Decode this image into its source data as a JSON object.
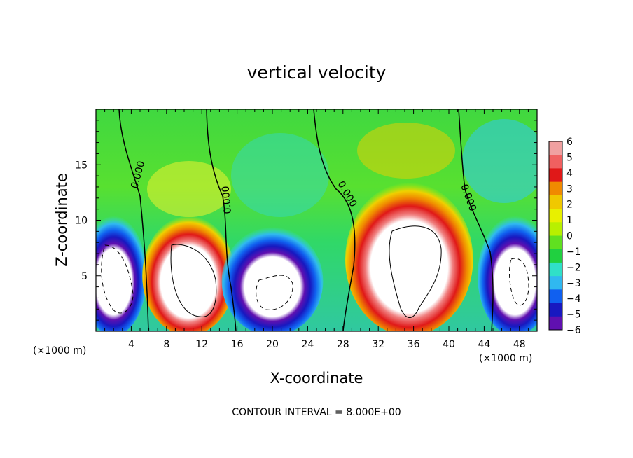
{
  "chart_data": {
    "type": "heatmap",
    "title": "vertical velocity",
    "xlabel": "X-coordinate",
    "ylabel": "Z-coordinate",
    "x_unit_label_left": "(×1000 m)",
    "x_unit_label_right": "(×1000 m)",
    "footer": "CONTOUR INTERVAL = 8.000E+00",
    "xlim": [
      0,
      50
    ],
    "ylim": [
      0,
      20
    ],
    "x_ticks": [
      4,
      8,
      12,
      16,
      20,
      24,
      28,
      32,
      36,
      40,
      44,
      48
    ],
    "y_ticks": [
      5,
      10,
      15
    ],
    "colorbar": {
      "levels": [
        6,
        5,
        4,
        3,
        2,
        1,
        0,
        -1,
        -2,
        -3,
        -4,
        -5,
        -6
      ],
      "colors": [
        "#f0a0a0",
        "#f06060",
        "#e01818",
        "#f08a00",
        "#f0c800",
        "#e8f000",
        "#b8f000",
        "#60e020",
        "#20d040",
        "#30e0c8",
        "#30b8f0",
        "#1060f0",
        "#1818c0",
        "#6010b0"
      ]
    },
    "zero_contour_label": "0.000",
    "cells": [
      {
        "x": [
          0,
          4
        ],
        "z": [
          1,
          9
        ],
        "w": -8
      },
      {
        "x": [
          7,
          14
        ],
        "z": [
          1,
          9
        ],
        "w": 8
      },
      {
        "x": [
          16,
          24
        ],
        "z": [
          1,
          8
        ],
        "w": -8
      },
      {
        "x": [
          30,
          41
        ],
        "z": [
          1,
          12
        ],
        "w": 8
      },
      {
        "x": [
          45,
          50
        ],
        "z": [
          1,
          9
        ],
        "w": -8
      }
    ]
  }
}
